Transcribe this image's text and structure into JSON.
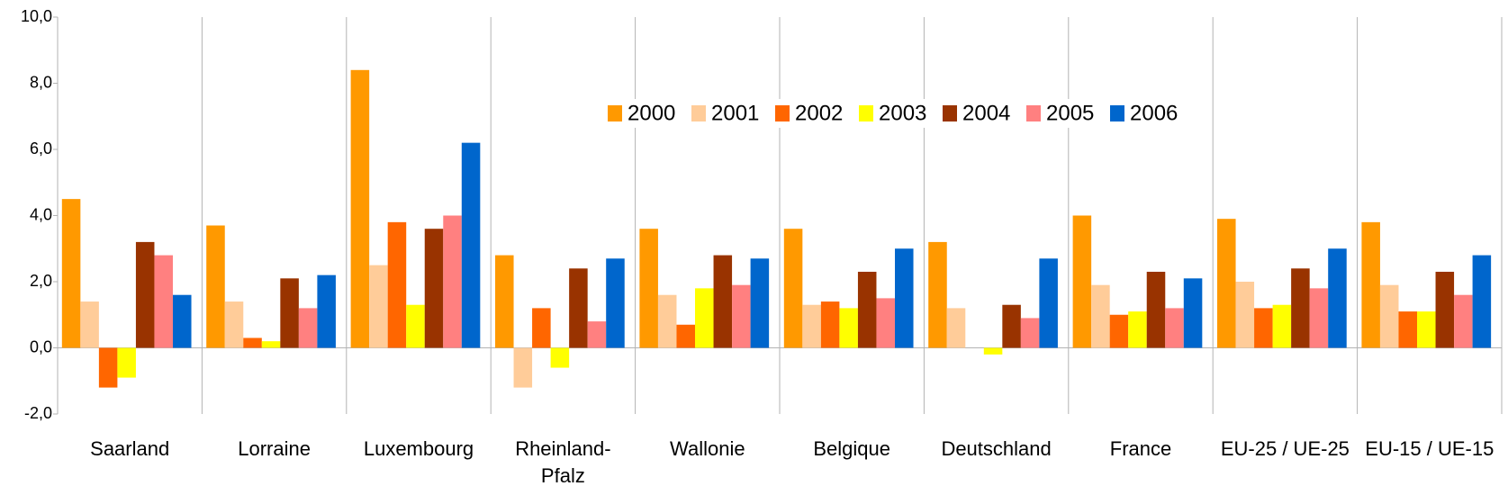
{
  "chart_data": {
    "type": "bar",
    "categories": [
      "Saarland",
      "Lorraine",
      "Luxembourg",
      "Rheinland-Pfalz",
      "Wallonie",
      "Belgique",
      "Deutschland",
      "France",
      "EU-25 / UE-25",
      "EU-15 / UE-15"
    ],
    "series": [
      {
        "name": "2000",
        "color": "#ff9900",
        "values": [
          4.5,
          3.7,
          8.4,
          2.8,
          3.6,
          3.6,
          3.2,
          4.0,
          3.9,
          3.8
        ]
      },
      {
        "name": "2001",
        "color": "#ffcc99",
        "values": [
          1.4,
          1.4,
          2.5,
          -1.2,
          1.6,
          1.3,
          1.2,
          1.9,
          2.0,
          1.9
        ]
      },
      {
        "name": "2002",
        "color": "#ff6600",
        "values": [
          -1.2,
          0.3,
          3.8,
          1.2,
          0.7,
          1.4,
          0.0,
          1.0,
          1.2,
          1.1
        ]
      },
      {
        "name": "2003",
        "color": "#ffff00",
        "values": [
          -0.9,
          0.2,
          1.3,
          -0.6,
          1.8,
          1.2,
          -0.2,
          1.1,
          1.3,
          1.1
        ]
      },
      {
        "name": "2004",
        "color": "#993300",
        "values": [
          3.2,
          2.1,
          3.6,
          2.4,
          2.8,
          2.3,
          1.3,
          2.3,
          2.4,
          2.3
        ]
      },
      {
        "name": "2005",
        "color": "#ff8080",
        "values": [
          2.8,
          1.2,
          4.0,
          0.8,
          1.9,
          1.5,
          0.9,
          1.2,
          1.8,
          1.6
        ]
      },
      {
        "name": "2006",
        "color": "#0066cc",
        "values": [
          1.6,
          2.2,
          6.2,
          2.7,
          2.7,
          3.0,
          2.7,
          2.1,
          3.0,
          2.8
        ]
      }
    ],
    "ylim": [
      -2,
      10
    ],
    "yticks": [
      {
        "value": -2,
        "label": "-2,0"
      },
      {
        "value": 0,
        "label": "0,0"
      },
      {
        "value": 2,
        "label": "2,0"
      },
      {
        "value": 4,
        "label": "4,0"
      },
      {
        "value": 6,
        "label": "6,0"
      },
      {
        "value": 8,
        "label": "8,0"
      },
      {
        "value": 10,
        "label": "10,0"
      }
    ],
    "grid": true,
    "legend": "top"
  }
}
